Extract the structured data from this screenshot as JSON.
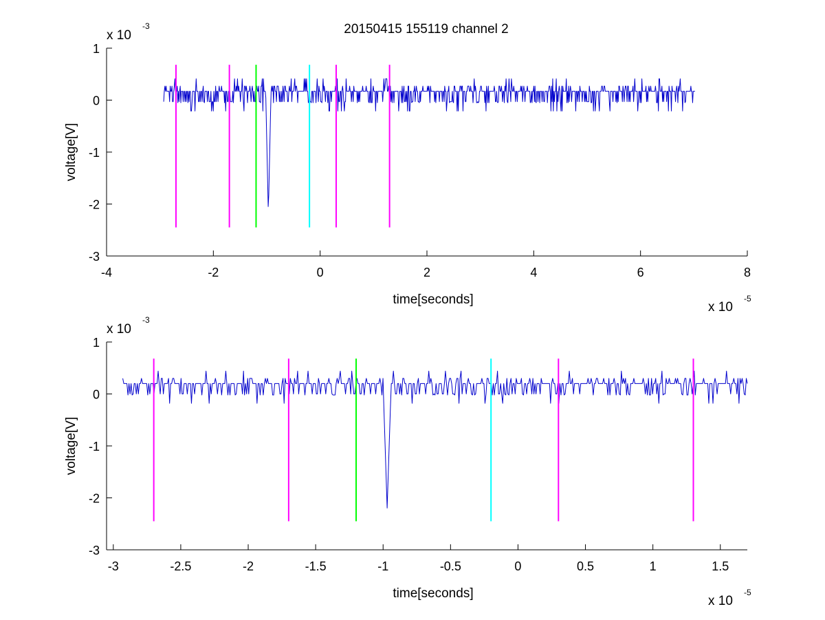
{
  "figure": {
    "title": "20150415 155119 channel 2"
  },
  "chart_data": [
    {
      "type": "line",
      "xlabel": "time[seconds]",
      "ylabel": "voltage[V]",
      "x_scale_label": "x 10",
      "x_scale_exponent": "-5",
      "y_scale_label": "x 10",
      "y_scale_exponent": "-3",
      "xlim": [
        -4,
        8
      ],
      "ylim": [
        -3,
        1
      ],
      "xticks": [
        -4,
        -2,
        0,
        2,
        4,
        6,
        8
      ],
      "xtick_labels": [
        "-4",
        "-2",
        "0",
        "2",
        "4",
        "6",
        "8"
      ],
      "yticks": [
        -3,
        -2,
        -1,
        0,
        1
      ],
      "ytick_labels": [
        "-3",
        "-2",
        "-1",
        "0",
        "1"
      ],
      "grid": false,
      "signal": {
        "color": "#0000cc",
        "x_start": -2.93,
        "x_end": 7.02,
        "baseline": 0.17,
        "min_value": -2.2,
        "min_at": -0.97,
        "max_value": 0.62
      },
      "markers": [
        {
          "x": -2.7,
          "color": "#ff00ff",
          "y_bottom": -2.45,
          "y_top": 0.68
        },
        {
          "x": -1.7,
          "color": "#ff00ff",
          "y_bottom": -2.45,
          "y_top": 0.68
        },
        {
          "x": -1.2,
          "color": "#00ff00",
          "y_bottom": -2.45,
          "y_top": 0.68
        },
        {
          "x": -0.2,
          "color": "#00ffff",
          "y_bottom": -2.45,
          "y_top": 0.68
        },
        {
          "x": 0.3,
          "color": "#ff00ff",
          "y_bottom": -2.45,
          "y_top": 0.68
        },
        {
          "x": 1.3,
          "color": "#ff00ff",
          "y_bottom": -2.45,
          "y_top": 0.68
        }
      ]
    },
    {
      "type": "line",
      "xlabel": "time[seconds]",
      "ylabel": "voltage[V]",
      "x_scale_label": "x 10",
      "x_scale_exponent": "-5",
      "y_scale_label": "x 10",
      "y_scale_exponent": "-3",
      "xlim": [
        -3.05,
        1.7
      ],
      "ylim": [
        -3,
        1
      ],
      "xticks": [
        -3,
        -2.5,
        -2,
        -1.5,
        -1,
        -0.5,
        0,
        0.5,
        1,
        1.5
      ],
      "xtick_labels": [
        "-3",
        "-2.5",
        "-2",
        "-1.5",
        "-1",
        "-0.5",
        "0",
        "0.5",
        "1",
        "1.5"
      ],
      "yticks": [
        -3,
        -2,
        -1,
        0,
        1
      ],
      "ytick_labels": [
        "-3",
        "-2",
        "-1",
        "0",
        "1"
      ],
      "grid": false,
      "signal": {
        "color": "#0000cc",
        "x_start": -2.93,
        "x_end": 1.7,
        "baseline": 0.2,
        "min_value": -2.2,
        "min_at": -0.97,
        "max_value": 0.62
      },
      "markers": [
        {
          "x": -2.7,
          "color": "#ff00ff",
          "y_bottom": -2.45,
          "y_top": 0.68
        },
        {
          "x": -1.7,
          "color": "#ff00ff",
          "y_bottom": -2.45,
          "y_top": 0.68
        },
        {
          "x": -1.2,
          "color": "#00ff00",
          "y_bottom": -2.45,
          "y_top": 0.68
        },
        {
          "x": -0.2,
          "color": "#00ffff",
          "y_bottom": -2.45,
          "y_top": 0.68
        },
        {
          "x": 0.3,
          "color": "#ff00ff",
          "y_bottom": -2.45,
          "y_top": 0.68
        },
        {
          "x": 1.3,
          "color": "#ff00ff",
          "y_bottom": -2.45,
          "y_top": 0.68
        }
      ]
    }
  ]
}
